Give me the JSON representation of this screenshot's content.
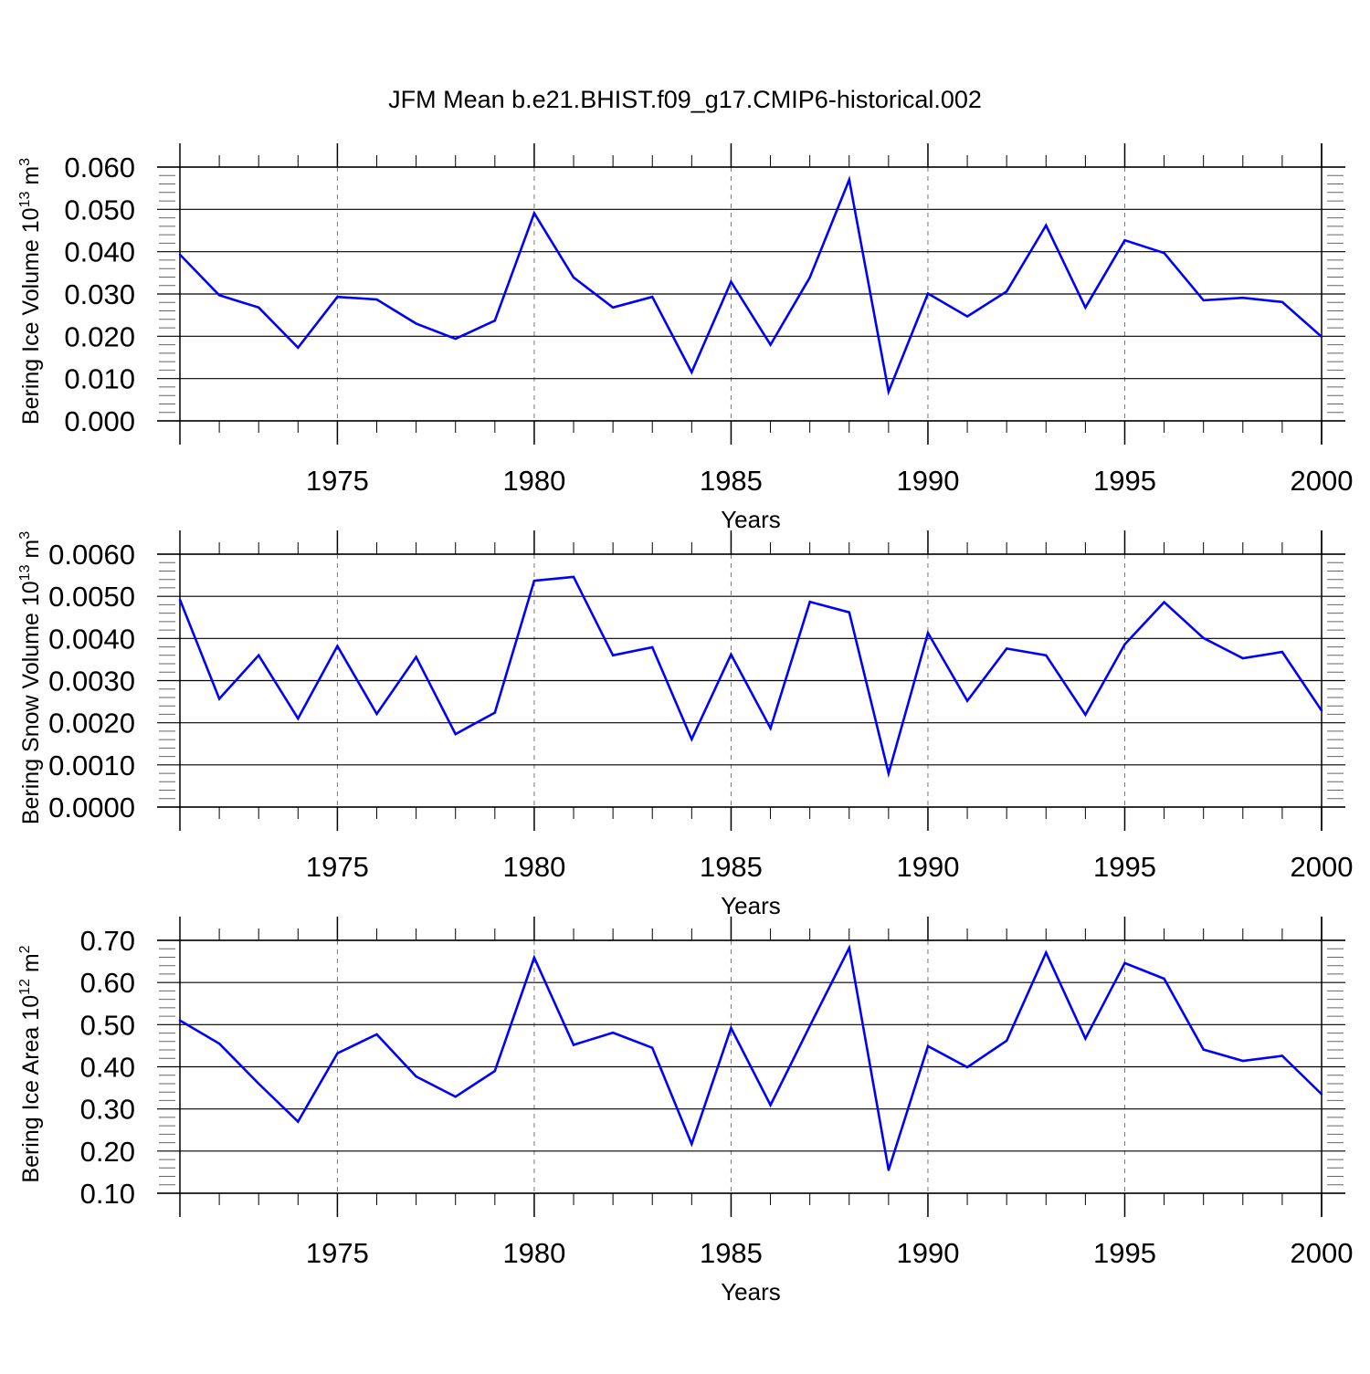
{
  "figure": {
    "title": "JFM Mean b.e21.BHIST.f09_g17.CMIP6-historical.002",
    "line_color": "#0000ff"
  },
  "chart_data": [
    {
      "type": "line",
      "xlabel": "Years",
      "ylabel": {
        "text": "Bering Ice Volume 10",
        "exp": "13",
        "unit": " m",
        "unit_exp": "3"
      },
      "xlim": [
        1971,
        2000
      ],
      "ylim": [
        0.0,
        0.06
      ],
      "x_ticks": [
        "1975",
        "1980",
        "1985",
        "1990",
        "1995",
        "2000"
      ],
      "y_ticks": [
        "0.000",
        "0.010",
        "0.020",
        "0.030",
        "0.040",
        "0.050",
        "0.060"
      ],
      "grid": "vertical dashed at major x ticks",
      "x": [
        1971,
        1972,
        1973,
        1974,
        1975,
        1976,
        1977,
        1978,
        1979,
        1980,
        1981,
        1982,
        1983,
        1984,
        1985,
        1986,
        1987,
        1988,
        1989,
        1990,
        1991,
        1992,
        1993,
        1994,
        1995,
        1996,
        1997,
        1998,
        1999,
        2000
      ],
      "y": [
        0.0393,
        0.0297,
        0.0268,
        0.0173,
        0.0293,
        0.0287,
        0.023,
        0.0194,
        0.0237,
        0.0491,
        0.0339,
        0.0268,
        0.0293,
        0.0115,
        0.0329,
        0.018,
        0.0339,
        0.057,
        0.0069,
        0.0301,
        0.0247,
        0.0306,
        0.0462,
        0.0268,
        0.0427,
        0.0397,
        0.0285,
        0.0291,
        0.0281,
        0.0199
      ]
    },
    {
      "type": "line",
      "xlabel": "Years",
      "ylabel": {
        "text": "Bering Snow Volume 10",
        "exp": "13",
        "unit": " m",
        "unit_exp": "3"
      },
      "xlim": [
        1971,
        2000
      ],
      "ylim": [
        0.0,
        0.006
      ],
      "x_ticks": [
        "1975",
        "1980",
        "1985",
        "1990",
        "1995",
        "2000"
      ],
      "y_ticks": [
        "0.0000",
        "0.0010",
        "0.0020",
        "0.0030",
        "0.0040",
        "0.0050",
        "0.0060"
      ],
      "grid": "vertical dashed at major x ticks",
      "x": [
        1971,
        1972,
        1973,
        1974,
        1975,
        1976,
        1977,
        1978,
        1979,
        1980,
        1981,
        1982,
        1983,
        1984,
        1985,
        1986,
        1987,
        1988,
        1989,
        1990,
        1991,
        1992,
        1993,
        1994,
        1995,
        1996,
        1997,
        1998,
        1999,
        2000
      ],
      "y": [
        0.00492,
        0.00257,
        0.0036,
        0.0021,
        0.00382,
        0.00221,
        0.00356,
        0.00173,
        0.00224,
        0.00537,
        0.00546,
        0.0036,
        0.00379,
        0.00161,
        0.00362,
        0.00187,
        0.00487,
        0.00462,
        0.0008,
        0.00413,
        0.00252,
        0.00376,
        0.0036,
        0.00219,
        0.00386,
        0.00486,
        0.00401,
        0.00353,
        0.00368,
        0.00229
      ]
    },
    {
      "type": "line",
      "xlabel": "Years",
      "ylabel": {
        "text": "Bering Ice Area 10",
        "exp": "12",
        "unit": " m",
        "unit_exp": "2"
      },
      "xlim": [
        1971,
        2000
      ],
      "ylim": [
        0.1,
        0.7
      ],
      "x_ticks": [
        "1975",
        "1980",
        "1985",
        "1990",
        "1995",
        "2000"
      ],
      "y_ticks": [
        "0.10",
        "0.20",
        "0.30",
        "0.40",
        "0.50",
        "0.60",
        "0.70"
      ],
      "grid": "vertical dashed at major x ticks",
      "x": [
        1971,
        1972,
        1973,
        1974,
        1975,
        1976,
        1977,
        1978,
        1979,
        1980,
        1981,
        1982,
        1983,
        1984,
        1985,
        1986,
        1987,
        1988,
        1989,
        1990,
        1991,
        1992,
        1993,
        1994,
        1995,
        1996,
        1997,
        1998,
        1999,
        2000
      ],
      "y": [
        0.51,
        0.455,
        0.36,
        0.27,
        0.432,
        0.477,
        0.377,
        0.329,
        0.39,
        0.659,
        0.452,
        0.481,
        0.445,
        0.217,
        0.492,
        0.309,
        0.497,
        0.682,
        0.155,
        0.449,
        0.399,
        0.462,
        0.671,
        0.467,
        0.646,
        0.609,
        0.441,
        0.414,
        0.426,
        0.335
      ]
    }
  ]
}
